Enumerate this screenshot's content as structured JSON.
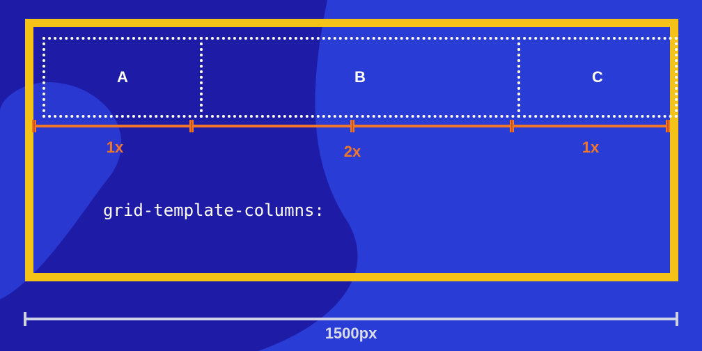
{
  "grid": {
    "cells": [
      {
        "label": "A"
      },
      {
        "label": "B"
      },
      {
        "label": "C"
      }
    ],
    "fractions": [
      "1x",
      "2x",
      "1x"
    ],
    "property": "grid-template-columns:"
  },
  "measurement": {
    "label": "1500px"
  },
  "colors": {
    "background": "#2a3cd6",
    "container_border": "#f5c217",
    "track_line": "#f0772a",
    "cell_border": "#ffffff"
  }
}
